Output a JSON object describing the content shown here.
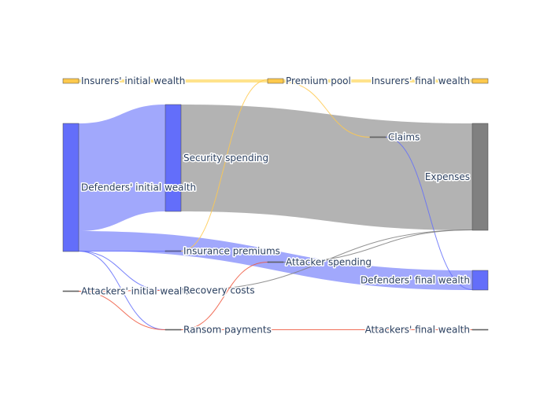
{
  "chart_data": {
    "type": "sankey",
    "nodes": [
      {
        "id": "insurers_initial",
        "label": "Insurers' initial wealth",
        "color": "#ffc94d"
      },
      {
        "id": "premium_pool",
        "label": "Premium pool",
        "color": "#ffc94d"
      },
      {
        "id": "insurers_final",
        "label": "Insurers' final wealth",
        "color": "#ffc94d"
      },
      {
        "id": "defenders_initial",
        "label": "Defenders' initial wealth",
        "color": "#636efa"
      },
      {
        "id": "security_spending",
        "label": "Security spending",
        "color": "#636efa"
      },
      {
        "id": "claims",
        "label": "Claims",
        "color": "#808080"
      },
      {
        "id": "expenses",
        "label": "Expenses",
        "color": "#808080"
      },
      {
        "id": "insurance_premiums",
        "label": "Insurance premiums",
        "color": "#636efa"
      },
      {
        "id": "attacker_spending",
        "label": "Attacker spending",
        "color": "#808080"
      },
      {
        "id": "defenders_final",
        "label": "Defenders' final wealth",
        "color": "#636efa"
      },
      {
        "id": "attackers_initial",
        "label": "Attackers' initial wealth",
        "color": "#808080"
      },
      {
        "id": "recovery_costs",
        "label": "Recovery costs",
        "color": "#636efa"
      },
      {
        "id": "ransom_payments",
        "label": "Ransom payments",
        "color": "#808080"
      },
      {
        "id": "attackers_final",
        "label": "Attackers' final wealth",
        "color": "#808080"
      }
    ],
    "links": [
      {
        "source": "insurers_initial",
        "target": "premium_pool",
        "value": 3,
        "color": "#ffd966"
      },
      {
        "source": "premium_pool",
        "target": "insurers_final",
        "value": 3,
        "color": "#ffd966"
      },
      {
        "source": "defenders_initial",
        "target": "security_spending",
        "value": 137,
        "color": "#636efa"
      },
      {
        "source": "security_spending",
        "target": "expenses",
        "value": 137,
        "color": "#808080"
      },
      {
        "source": "defenders_initial",
        "target": "defenders_final",
        "value": 25,
        "color": "#636efa"
      },
      {
        "source": "defenders_initial",
        "target": "insurance_premiums",
        "value": 1,
        "color": "#636efa"
      },
      {
        "source": "insurance_premiums",
        "target": "premium_pool",
        "value": 1,
        "color": "#ffc94d"
      },
      {
        "source": "premium_pool",
        "target": "claims",
        "value": 1,
        "color": "#ffc94d"
      },
      {
        "source": "claims",
        "target": "defenders_final",
        "value": 1,
        "color": "#636efa"
      },
      {
        "source": "defenders_initial",
        "target": "recovery_costs",
        "value": 1,
        "color": "#636efa"
      },
      {
        "source": "recovery_costs",
        "target": "expenses",
        "value": 1,
        "color": "#808080"
      },
      {
        "source": "defenders_initial",
        "target": "ransom_payments",
        "value": 1,
        "color": "#636efa"
      },
      {
        "source": "attackers_initial",
        "target": "ransom_payments",
        "value": 0.5,
        "color": "#ef553b"
      },
      {
        "source": "attackers_initial",
        "target": "recovery_costs",
        "value": 0.5,
        "color": "#ef553b"
      },
      {
        "source": "ransom_payments",
        "target": "attacker_spending",
        "value": 0.5,
        "color": "#ef553b"
      },
      {
        "source": "ransom_payments",
        "target": "attackers_final",
        "value": 1,
        "color": "#ef553b"
      },
      {
        "source": "attacker_spending",
        "target": "expenses",
        "value": 0.5,
        "color": "#808080"
      }
    ]
  }
}
